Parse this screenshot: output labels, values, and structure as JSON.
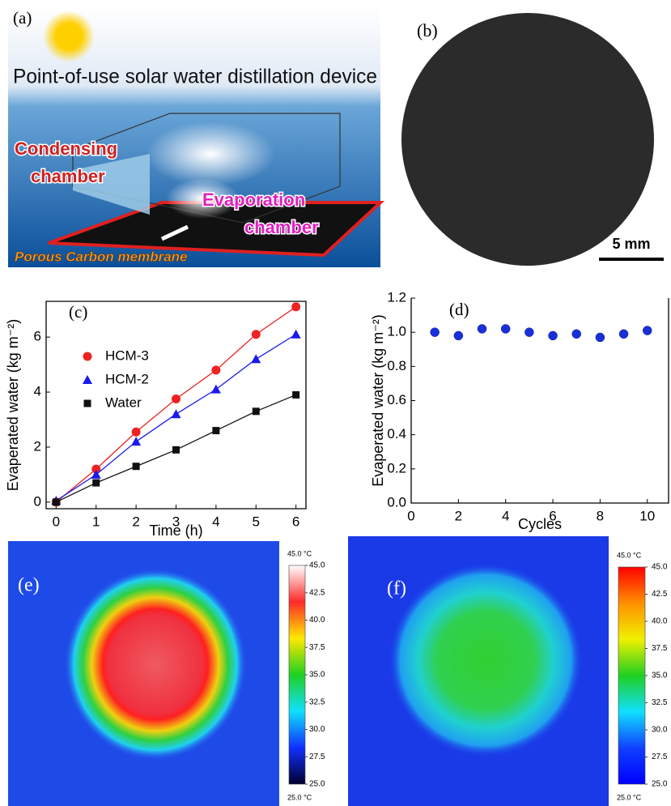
{
  "panels": {
    "a": {
      "label": "(a)",
      "title": "Point-of-use solar water distillation device",
      "condensing": [
        "Condensing",
        "chamber"
      ],
      "evaporation": [
        "Evaporation",
        "chamber"
      ],
      "membrane": "Porous Carbon membrane"
    },
    "b": {
      "label": "(b)",
      "scale": "5 mm"
    },
    "e": {
      "label": "(e)",
      "colorbar": {
        "max_label": "45.0 °C",
        "min_label": "25.0 °C",
        "lim": [
          25,
          45
        ],
        "colors": [
          "#ffffff",
          "#ff2a2a",
          "#ffe800",
          "#20d020",
          "#10e0ff",
          "#1030ff",
          "#000030"
        ],
        "ticks": [
          {
            "value": 45,
            "label": "45.0"
          },
          42.5,
          {
            "value": 40,
            "label": "40.0"
          },
          37.5,
          {
            "value": 35,
            "label": "35.0"
          },
          32.5,
          {
            "value": 30,
            "label": "30.0"
          },
          27.5,
          {
            "value": 25,
            "label": "25.0"
          }
        ]
      }
    },
    "f": {
      "label": "(f)",
      "colorbar": {
        "max_label": "45.0 °C",
        "min_label": "25.0 °C",
        "lim": [
          25,
          45
        ],
        "colors": [
          "#ff0000",
          "#ff9000",
          "#f0f000",
          "#20d020",
          "#10e0ff",
          "#1040ff",
          "#0000ff"
        ],
        "ticks": [
          {
            "value": 45,
            "label": "45.0"
          },
          42.5,
          {
            "value": 40,
            "label": "40.0"
          },
          37.5,
          {
            "value": 35,
            "label": "35.0"
          },
          32.5,
          {
            "value": 30,
            "label": "30.0"
          },
          27.5,
          {
            "value": 25,
            "label": "25.0"
          }
        ]
      }
    }
  },
  "chart_data": [
    {
      "type": "line",
      "panel_label": "(c)",
      "xlabel": "Time (h)",
      "ylabel": "Evaperated water (kg m⁻²)",
      "x": [
        0,
        1,
        2,
        3,
        4,
        5,
        6
      ],
      "xlim": [
        -0.25,
        6.25
      ],
      "xticks": [
        0,
        1,
        2,
        3,
        4,
        5,
        6
      ],
      "ylim": [
        -0.24,
        7.3
      ],
      "yticks": [
        0,
        2,
        4,
        6
      ],
      "series": [
        {
          "name": "HCM-3",
          "color": "#ee2222",
          "marker": "circle",
          "values": [
            0,
            1.2,
            2.55,
            3.75,
            4.8,
            6.1,
            7.1
          ]
        },
        {
          "name": "HCM-2",
          "color": "#1a1aee",
          "marker": "triangle",
          "values": [
            0.05,
            1.0,
            2.2,
            3.2,
            4.1,
            5.2,
            6.1
          ]
        },
        {
          "name": "Water",
          "color": "#111111",
          "marker": "square",
          "values": [
            0,
            0.7,
            1.3,
            1.9,
            2.6,
            3.3,
            3.9
          ]
        }
      ]
    },
    {
      "type": "scatter",
      "panel_label": "(d)",
      "xlabel": "Cycles",
      "ylabel": "Evaperated water (kg m⁻²)",
      "x": [
        1,
        2,
        3,
        4,
        5,
        6,
        7,
        8,
        9,
        10
      ],
      "xlim": [
        0,
        10.9
      ],
      "xticks": [
        0,
        2,
        4,
        6,
        8,
        10
      ],
      "ylim": [
        0,
        1.2
      ],
      "yticks": [
        {
          "value": 0,
          "label": "0.0"
        },
        0.2,
        0.4,
        0.6,
        0.8,
        {
          "value": 1,
          "label": "1.0"
        },
        1.2
      ],
      "color": "#1a2fd8",
      "values": [
        1.0,
        0.98,
        1.02,
        1.02,
        1.0,
        0.98,
        0.99,
        0.97,
        0.99,
        1.01
      ]
    }
  ]
}
